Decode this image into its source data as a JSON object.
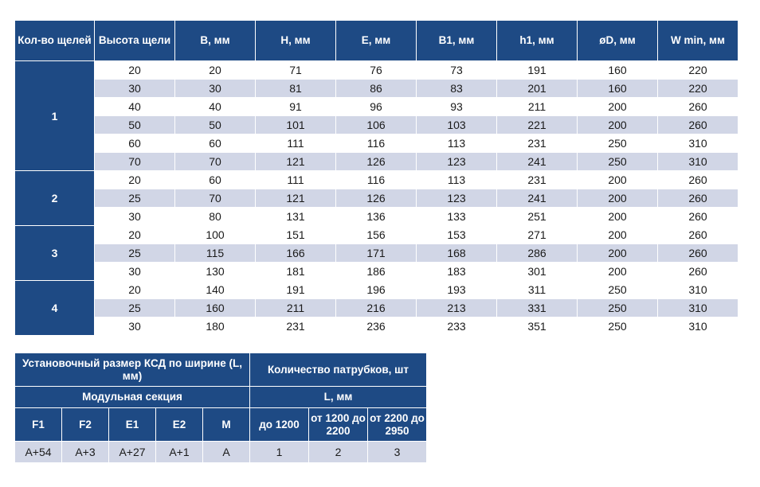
{
  "main_table": {
    "headers": [
      "Кол-во щелей",
      "Высота щели",
      "B, мм",
      "H, мм",
      "E, мм",
      "B1, мм",
      "h1, мм",
      "øD, мм",
      "W min, мм"
    ],
    "groups": [
      {
        "count": "1",
        "rows": [
          [
            "20",
            "20",
            "71",
            "76",
            "73",
            "191",
            "160",
            "220"
          ],
          [
            "30",
            "30",
            "81",
            "86",
            "83",
            "201",
            "160",
            "220"
          ],
          [
            "40",
            "40",
            "91",
            "96",
            "93",
            "211",
            "200",
            "260"
          ],
          [
            "50",
            "50",
            "101",
            "106",
            "103",
            "221",
            "200",
            "260"
          ],
          [
            "60",
            "60",
            "111",
            "116",
            "113",
            "231",
            "250",
            "310"
          ],
          [
            "70",
            "70",
            "121",
            "126",
            "123",
            "241",
            "250",
            "310"
          ]
        ]
      },
      {
        "count": "2",
        "rows": [
          [
            "20",
            "60",
            "111",
            "116",
            "113",
            "231",
            "200",
            "260"
          ],
          [
            "25",
            "70",
            "121",
            "126",
            "123",
            "241",
            "200",
            "260"
          ],
          [
            "30",
            "80",
            "131",
            "136",
            "133",
            "251",
            "200",
            "260"
          ]
        ]
      },
      {
        "count": "3",
        "rows": [
          [
            "20",
            "100",
            "151",
            "156",
            "153",
            "271",
            "200",
            "260"
          ],
          [
            "25",
            "115",
            "166",
            "171",
            "168",
            "286",
            "200",
            "260"
          ],
          [
            "30",
            "130",
            "181",
            "186",
            "183",
            "301",
            "200",
            "260"
          ]
        ]
      },
      {
        "count": "4",
        "rows": [
          [
            "20",
            "140",
            "191",
            "196",
            "193",
            "311",
            "250",
            "310"
          ],
          [
            "25",
            "160",
            "211",
            "216",
            "213",
            "331",
            "250",
            "310"
          ],
          [
            "30",
            "180",
            "231",
            "236",
            "233",
            "351",
            "250",
            "310"
          ]
        ]
      }
    ]
  },
  "mount_table": {
    "header_left": "Установочный размер КСД по ширине (L, мм)",
    "header_right": "Количество патрубков, шт",
    "subheader_left": "Модульная секция",
    "subheader_right": "L, мм",
    "columns": [
      "F1",
      "F2",
      "E1",
      "E2",
      "M",
      "до 1200",
      "от 1200 до 2200",
      "от 2200 до 2950"
    ],
    "values": [
      "A+54",
      "A+3",
      "A+27",
      "A+1",
      "A",
      "1",
      "2",
      "3"
    ]
  },
  "colors": {
    "header_blue": "#1e4a84",
    "row_shade": "#d1d6e6"
  }
}
